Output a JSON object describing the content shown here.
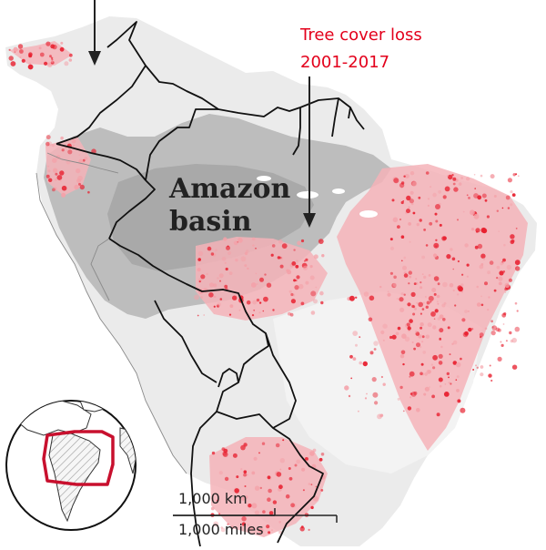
{
  "colors": {
    "background": "#ffffff",
    "land": "#e9e9e9",
    "land_light": "#f2f2f2",
    "basin": "#bcbcbc",
    "basin_dark": "#a8a8a8",
    "loss": "#e8202f",
    "loss_light": "#f4a1a8",
    "border": "#111111",
    "inset_frame": "#c8102e",
    "text": "#222222",
    "text_loss": "#e3001b"
  },
  "labels": {
    "basin_line1": "Amazon",
    "basin_line2": "basin",
    "loss_line1": "Tree cover loss",
    "loss_line2": "2001-2017"
  },
  "scale": {
    "km_label": "1,000 km",
    "miles_label": "1,000 miles"
  },
  "inset": {
    "icon": "globe-locator"
  }
}
